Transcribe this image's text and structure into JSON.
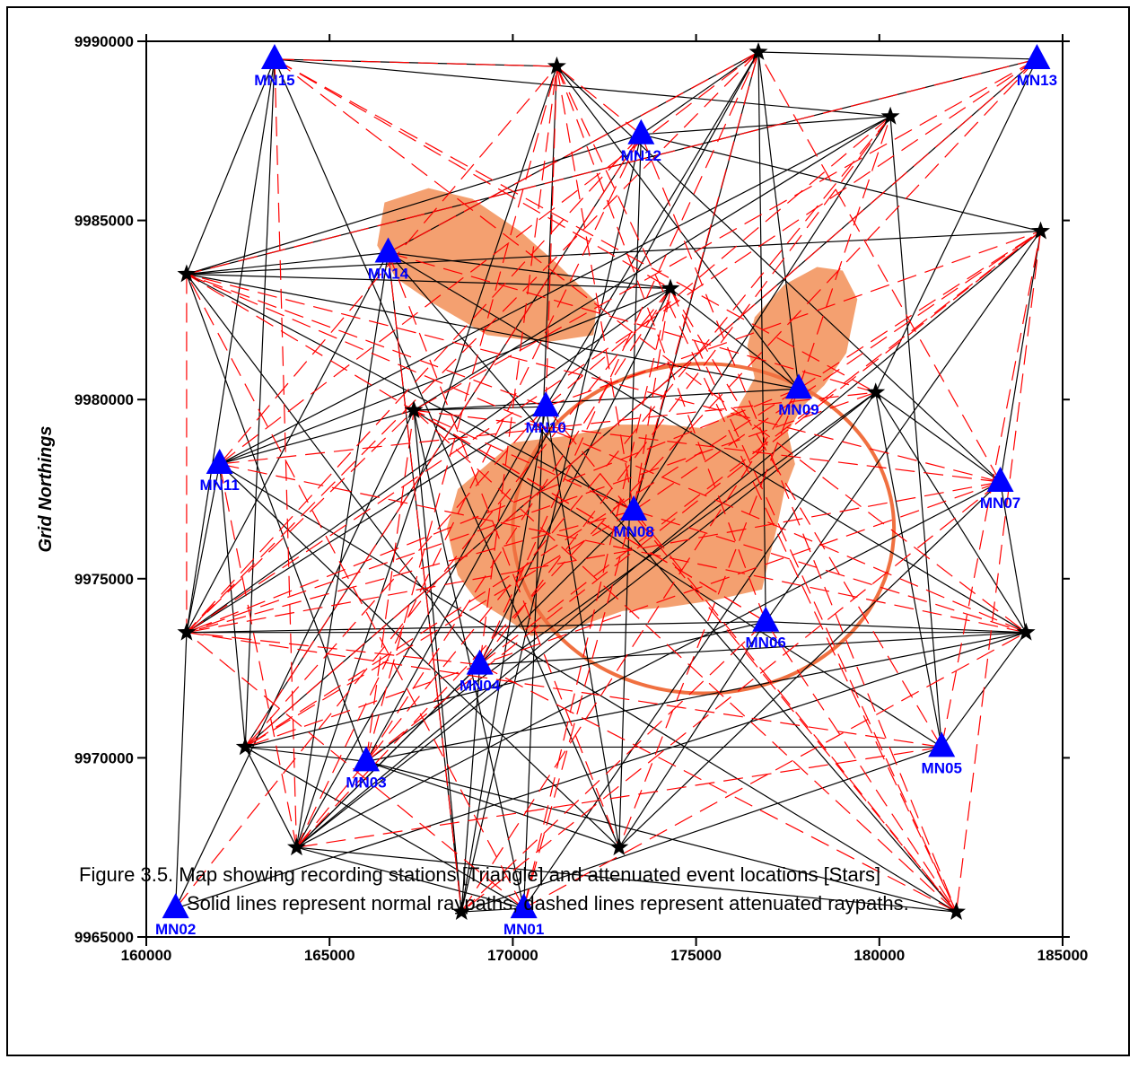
{
  "chart_data": {
    "type": "scatter",
    "ylabel": "Grid Northings",
    "xlabel": "",
    "xlim": [
      160000,
      185000
    ],
    "ylim": [
      9965000,
      9990000
    ],
    "x_ticks": [
      160000,
      165000,
      170000,
      175000,
      180000,
      185000
    ],
    "y_ticks": [
      9965000,
      9970000,
      9975000,
      9980000,
      9985000,
      9990000
    ],
    "x_tick_labels": [
      "160000",
      "165000",
      "170000",
      "175000",
      "180000",
      "185000"
    ],
    "y_tick_labels": [
      "9965000",
      "9970000",
      "9975000",
      "9980000",
      "9985000",
      "9990000"
    ],
    "stations": [
      {
        "name": "MN01",
        "x": 170300,
        "y": 9965800
      },
      {
        "name": "MN02",
        "x": 160800,
        "y": 9965800
      },
      {
        "name": "MN03",
        "x": 166000,
        "y": 9969900
      },
      {
        "name": "MN04",
        "x": 169100,
        "y": 9972600
      },
      {
        "name": "MN05",
        "x": 181700,
        "y": 9970300
      },
      {
        "name": "MN06",
        "x": 176900,
        "y": 9973800
      },
      {
        "name": "MN07",
        "x": 183300,
        "y": 9977700
      },
      {
        "name": "MN08",
        "x": 173300,
        "y": 9976900
      },
      {
        "name": "MN09",
        "x": 177800,
        "y": 9980300
      },
      {
        "name": "MN10",
        "x": 170900,
        "y": 9979800
      },
      {
        "name": "MN11",
        "x": 162000,
        "y": 9978200
      },
      {
        "name": "MN12",
        "x": 173500,
        "y": 9987400
      },
      {
        "name": "MN13",
        "x": 184300,
        "y": 9989500
      },
      {
        "name": "MN14",
        "x": 166600,
        "y": 9984100
      },
      {
        "name": "MN15",
        "x": 163500,
        "y": 9989500
      }
    ],
    "events": [
      {
        "x": 171200,
        "y": 9989300
      },
      {
        "x": 176700,
        "y": 9989700
      },
      {
        "x": 180300,
        "y": 9987900
      },
      {
        "x": 184400,
        "y": 9984700
      },
      {
        "x": 161100,
        "y": 9983500
      },
      {
        "x": 174300,
        "y": 9983100
      },
      {
        "x": 167300,
        "y": 9979700
      },
      {
        "x": 179900,
        "y": 9980200
      },
      {
        "x": 161100,
        "y": 9973500
      },
      {
        "x": 184000,
        "y": 9973500
      },
      {
        "x": 162700,
        "y": 9970300
      },
      {
        "x": 164100,
        "y": 9967500
      },
      {
        "x": 172900,
        "y": 9967500
      },
      {
        "x": 168600,
        "y": 9965700
      },
      {
        "x": 182100,
        "y": 9965700
      }
    ],
    "normal_raypaths": [
      [
        "MN15",
        "E1"
      ],
      [
        "MN15",
        "E3"
      ],
      [
        "MN15",
        "E5"
      ],
      [
        "MN15",
        "E11"
      ],
      [
        "MN15",
        "E13"
      ],
      [
        "MN15",
        "E9"
      ],
      [
        "MN14",
        "E5"
      ],
      [
        "MN14",
        "E2"
      ],
      [
        "MN14",
        "E6"
      ],
      [
        "MN14",
        "E10"
      ],
      [
        "MN14",
        "E12"
      ],
      [
        "MN14",
        "E15"
      ],
      [
        "MN14",
        "E14"
      ],
      [
        "MN14",
        "E9"
      ],
      [
        "MN13",
        "E2"
      ],
      [
        "MN13",
        "E5"
      ],
      [
        "MN13",
        "E11"
      ],
      [
        "MN13",
        "E8"
      ],
      [
        "MN12",
        "E5"
      ],
      [
        "MN12",
        "E2"
      ],
      [
        "MN12",
        "E4"
      ],
      [
        "MN12",
        "E13"
      ],
      [
        "MN12",
        "E14"
      ],
      [
        "MN12",
        "E11"
      ],
      [
        "MN12",
        "E3"
      ],
      [
        "MN11",
        "E7"
      ],
      [
        "MN11",
        "E3"
      ],
      [
        "MN11",
        "E13"
      ],
      [
        "MN11",
        "E9"
      ],
      [
        "MN11",
        "E15"
      ],
      [
        "MN11",
        "E6"
      ],
      [
        "MN11",
        "E11"
      ],
      [
        "MN10",
        "E7"
      ],
      [
        "MN10",
        "E12"
      ],
      [
        "MN10",
        "E13"
      ],
      [
        "MN10",
        "E2"
      ],
      [
        "MN10",
        "E14"
      ],
      [
        "MN10",
        "E9"
      ],
      [
        "MN09",
        "E5"
      ],
      [
        "MN09",
        "E6"
      ],
      [
        "MN09",
        "E7"
      ],
      [
        "MN09",
        "E2"
      ],
      [
        "MN09",
        "E1"
      ],
      [
        "MN08",
        "E3"
      ],
      [
        "MN08",
        "E5"
      ],
      [
        "MN08",
        "E12"
      ],
      [
        "MN08",
        "E2"
      ],
      [
        "MN07",
        "E8"
      ],
      [
        "MN07",
        "E4"
      ],
      [
        "MN07",
        "E13"
      ],
      [
        "MN07",
        "E12"
      ],
      [
        "MN07",
        "E10"
      ],
      [
        "MN07",
        "E1"
      ],
      [
        "MN06",
        "E2"
      ],
      [
        "MN06",
        "E4"
      ],
      [
        "MN06",
        "E9"
      ],
      [
        "MN06",
        "E13"
      ],
      [
        "MN06",
        "E10"
      ],
      [
        "MN06",
        "E11"
      ],
      [
        "MN05",
        "E8"
      ],
      [
        "MN05",
        "E3"
      ],
      [
        "MN05",
        "E11"
      ],
      [
        "MN05",
        "E14"
      ],
      [
        "MN05",
        "E7"
      ],
      [
        "MN05",
        "E10"
      ],
      [
        "MN04",
        "E5"
      ],
      [
        "MN04",
        "E10"
      ],
      [
        "MN04",
        "E14"
      ],
      [
        "MN04",
        "E12"
      ],
      [
        "MN04",
        "E6"
      ],
      [
        "MN03",
        "E5"
      ],
      [
        "MN03",
        "E11"
      ],
      [
        "MN03",
        "E13"
      ],
      [
        "MN03",
        "E8"
      ],
      [
        "MN03",
        "E2"
      ],
      [
        "MN03",
        "E10"
      ],
      [
        "MN03",
        "E15"
      ],
      [
        "MN02",
        "E10"
      ],
      [
        "MN02",
        "E9"
      ],
      [
        "MN02",
        "E7"
      ],
      [
        "MN01",
        "E7"
      ],
      [
        "MN01",
        "E11"
      ],
      [
        "MN01",
        "E1"
      ],
      [
        "MN01",
        "E12"
      ],
      [
        "MN01",
        "E14"
      ],
      [
        "MN01",
        "E8"
      ],
      [
        "E5",
        "E4"
      ],
      [
        "E5",
        "E6"
      ],
      [
        "E9",
        "E10"
      ],
      [
        "E3",
        "E7"
      ],
      [
        "E12",
        "E15"
      ],
      [
        "E11",
        "E12"
      ],
      [
        "E12",
        "E8"
      ],
      [
        "E14",
        "E7"
      ],
      [
        "E9",
        "E6"
      ],
      [
        "E4",
        "E12"
      ],
      [
        "E10",
        "E8"
      ],
      [
        "E1",
        "E12"
      ]
    ],
    "attenuated_raypaths": [
      [
        "MN15",
        "E1"
      ],
      [
        "MN15",
        "E6"
      ],
      [
        "MN15",
        "E12"
      ],
      [
        "MN15",
        "E10"
      ],
      [
        "MN15",
        "E8"
      ],
      [
        "MN14",
        "E2"
      ],
      [
        "MN14",
        "E8"
      ],
      [
        "MN14",
        "E13"
      ],
      [
        "MN14",
        "E14"
      ],
      [
        "MN13",
        "E5"
      ],
      [
        "MN13",
        "E9"
      ],
      [
        "MN13",
        "E11"
      ],
      [
        "MN13",
        "E7"
      ],
      [
        "MN13",
        "E12"
      ],
      [
        "MN12",
        "E9"
      ],
      [
        "MN12",
        "E11"
      ],
      [
        "MN12",
        "E15"
      ],
      [
        "MN12",
        "E1"
      ],
      [
        "MN12",
        "E12"
      ],
      [
        "MN11",
        "E1"
      ],
      [
        "MN11",
        "E2"
      ],
      [
        "MN11",
        "E10"
      ],
      [
        "MN11",
        "E8"
      ],
      [
        "MN11",
        "E12"
      ],
      [
        "MN10",
        "E4"
      ],
      [
        "MN10",
        "E5"
      ],
      [
        "MN10",
        "E11"
      ],
      [
        "MN10",
        "E15"
      ],
      [
        "MN10",
        "E3"
      ],
      [
        "MN10",
        "E1"
      ],
      [
        "MN09",
        "E9"
      ],
      [
        "MN09",
        "E11"
      ],
      [
        "MN09",
        "E14"
      ],
      [
        "MN09",
        "E4"
      ],
      [
        "MN09",
        "E13"
      ],
      [
        "MN09",
        "E3"
      ],
      [
        "MN08",
        "E1"
      ],
      [
        "MN08",
        "E4"
      ],
      [
        "MN08",
        "E9"
      ],
      [
        "MN08",
        "E11"
      ],
      [
        "MN08",
        "E15"
      ],
      [
        "MN08",
        "E7"
      ],
      [
        "MN08",
        "E6"
      ],
      [
        "MN08",
        "E10"
      ],
      [
        "MN07",
        "E5"
      ],
      [
        "MN07",
        "E7"
      ],
      [
        "MN07",
        "E9"
      ],
      [
        "MN07",
        "E11"
      ],
      [
        "MN07",
        "E2"
      ],
      [
        "MN07",
        "E14"
      ],
      [
        "MN06",
        "E1"
      ],
      [
        "MN06",
        "E5"
      ],
      [
        "MN06",
        "E7"
      ],
      [
        "MN06",
        "E14"
      ],
      [
        "MN06",
        "E15"
      ],
      [
        "MN05",
        "E4"
      ],
      [
        "MN05",
        "E6"
      ],
      [
        "MN05",
        "E9"
      ],
      [
        "MN05",
        "E12"
      ],
      [
        "MN04",
        "E3"
      ],
      [
        "MN04",
        "E1"
      ],
      [
        "MN04",
        "E9"
      ],
      [
        "MN04",
        "E2"
      ],
      [
        "MN04",
        "E4"
      ],
      [
        "MN04",
        "E15"
      ],
      [
        "MN03",
        "E6"
      ],
      [
        "MN03",
        "E1"
      ],
      [
        "MN03",
        "E4"
      ],
      [
        "MN03",
        "E7"
      ],
      [
        "MN02",
        "E6"
      ],
      [
        "MN01",
        "E6"
      ],
      [
        "MN01",
        "E2"
      ],
      [
        "MN01",
        "E9"
      ],
      [
        "MN01",
        "E5"
      ],
      [
        "MN01",
        "E10"
      ],
      [
        "E5",
        "E9"
      ],
      [
        "E4",
        "E15"
      ],
      [
        "E9",
        "E7"
      ],
      [
        "E5",
        "E10"
      ],
      [
        "E6",
        "E15"
      ],
      [
        "E3",
        "E12"
      ],
      [
        "E8",
        "E9"
      ],
      [
        "E1",
        "E15"
      ],
      [
        "E2",
        "E9"
      ],
      [
        "E7",
        "E15"
      ]
    ],
    "anomaly_zones": [
      [
        [
          166500,
          9985500
        ],
        [
          167700,
          9985900
        ],
        [
          168900,
          9985600
        ],
        [
          170200,
          9984700
        ],
        [
          171200,
          9983800
        ],
        [
          172300,
          9982700
        ],
        [
          172200,
          9981800
        ],
        [
          170900,
          9981600
        ],
        [
          169300,
          9981800
        ],
        [
          167800,
          9982700
        ],
        [
          166800,
          9983400
        ],
        [
          166300,
          9984300
        ]
      ],
      [
        [
          176600,
          9982300
        ],
        [
          177400,
          9983200
        ],
        [
          178300,
          9983700
        ],
        [
          179000,
          9983600
        ],
        [
          179400,
          9982800
        ],
        [
          179100,
          9981300
        ],
        [
          178500,
          9980400
        ],
        [
          177900,
          9979800
        ],
        [
          177500,
          9979100
        ],
        [
          177700,
          9978200
        ],
        [
          177400,
          9977400
        ],
        [
          177200,
          9976400
        ],
        [
          177000,
          9975600
        ],
        [
          176800,
          9974700
        ],
        [
          175500,
          9974400
        ],
        [
          174200,
          9974200
        ],
        [
          173000,
          9974100
        ],
        [
          171600,
          9973600
        ],
        [
          170500,
          9973400
        ],
        [
          169800,
          9973900
        ],
        [
          169000,
          9974400
        ],
        [
          168500,
          9975100
        ],
        [
          168200,
          9976400
        ],
        [
          168500,
          9977500
        ],
        [
          169200,
          9978100
        ],
        [
          170000,
          9978800
        ],
        [
          171600,
          9979000
        ],
        [
          172900,
          9979300
        ],
        [
          174100,
          9979300
        ],
        [
          175200,
          9979200
        ],
        [
          176100,
          9979700
        ],
        [
          176600,
          9980600
        ],
        [
          176400,
          9981500
        ]
      ]
    ],
    "anomaly_ellipse": {
      "cx": 175200,
      "cy": 9976400,
      "rx": 5200,
      "ry": 4600
    },
    "colors": {
      "station": "#0000ff",
      "normal_ray": "#000000",
      "attenuated_ray": "#ff0000",
      "anomaly_fill": "#f4a070",
      "anomaly_outline": "#f07040",
      "event": "#000000"
    },
    "series": [
      {
        "name": "Triangle",
        "role": "recording stations"
      },
      {
        "name": "Stars",
        "role": "attenuated event locations"
      }
    ]
  },
  "caption": {
    "line1": "Figure 3.5. Map showing recording stations [Triangle] and attenuated event locations [Stars]",
    "line2": "Solid lines represent normal raypaths, dashed lines represent attenuated raypaths."
  }
}
